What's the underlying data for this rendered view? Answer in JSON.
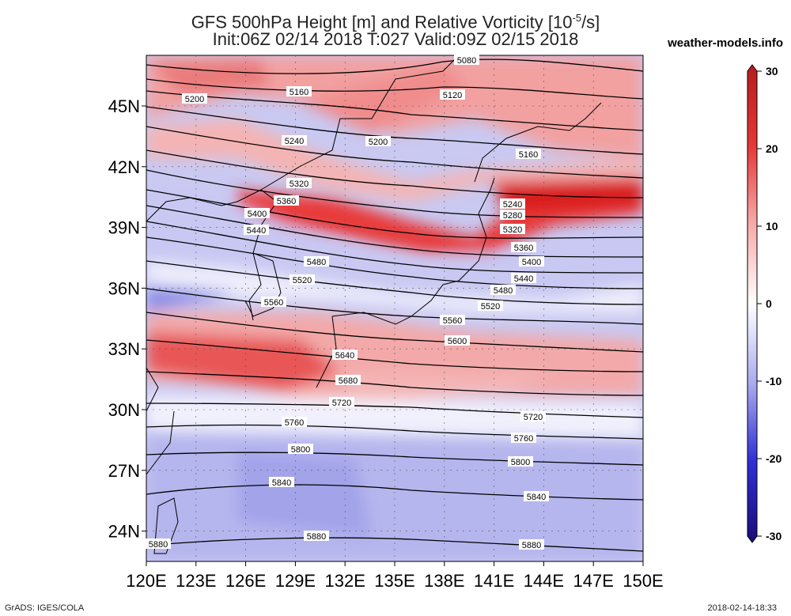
{
  "header": {
    "title_line1": "GFS 500hPa Height [m] and Relative Vorticity [10",
    "title_sup": "-5",
    "title_line1_end": "/s]",
    "title_line2": "Init:06Z 02/14 2018 T:027 Valid:09Z 02/15 2018",
    "site": "weather-models.info"
  },
  "axes": {
    "lat_labels": [
      "45N",
      "42N",
      "39N",
      "36N",
      "33N",
      "30N",
      "27N",
      "24N"
    ],
    "lat_values": [
      45,
      42,
      39,
      36,
      33,
      30,
      27,
      24
    ],
    "lon_labels": [
      "120E",
      "123E",
      "126E",
      "129E",
      "132E",
      "135E",
      "138E",
      "141E",
      "144E",
      "147E",
      "150E"
    ],
    "lon_values": [
      120,
      123,
      126,
      129,
      132,
      135,
      138,
      141,
      144,
      147,
      150
    ],
    "lat_range": [
      22.5,
      47.5
    ],
    "lon_range": [
      120,
      150
    ]
  },
  "colorbar": {
    "labels": [
      "30",
      "20",
      "10",
      "0",
      "-10",
      "-20",
      "-30"
    ],
    "values": [
      30,
      20,
      10,
      0,
      -10,
      -20,
      -30
    ],
    "colors": {
      "max": "#b71c1c",
      "high": "#f44336",
      "mid_pos": "#f7a8a8",
      "zero": "#ffffff",
      "mid_neg": "#a9a9ee",
      "low": "#2f2fd6",
      "min": "#1c0b7a"
    }
  },
  "contours": [
    {
      "label": "5080"
    },
    {
      "label": "5120"
    },
    {
      "label": "5160"
    },
    {
      "label": "5200"
    },
    {
      "label": "5240"
    },
    {
      "label": "5280"
    },
    {
      "label": "5320"
    },
    {
      "label": "5360"
    },
    {
      "label": "5400"
    },
    {
      "label": "5440"
    },
    {
      "label": "5480"
    },
    {
      "label": "5520"
    },
    {
      "label": "5560"
    },
    {
      "label": "5600"
    },
    {
      "label": "5640"
    },
    {
      "label": "5680"
    },
    {
      "label": "5720"
    },
    {
      "label": "5760"
    },
    {
      "label": "5800"
    },
    {
      "label": "5840"
    },
    {
      "label": "5880"
    }
  ],
  "footer": {
    "credit": "GrADS: IGES/COLA",
    "timestamp": "2018-02-14-18:33"
  }
}
